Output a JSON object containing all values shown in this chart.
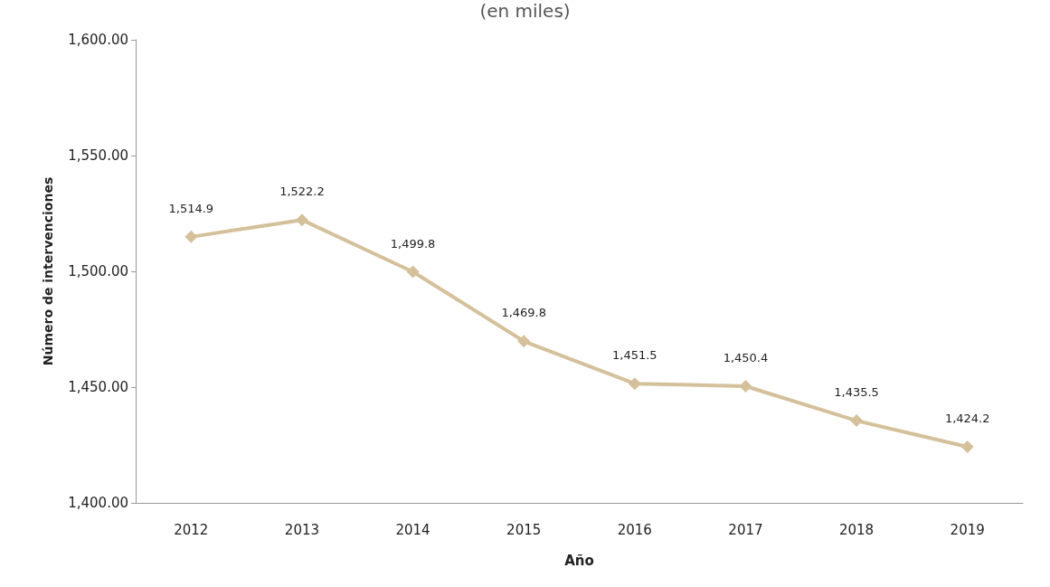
{
  "chart_data": {
    "type": "line",
    "subtitle": "(en miles)",
    "xlabel": "Año",
    "ylabel": "Número de intervenciones",
    "categories": [
      "2012",
      "2013",
      "2014",
      "2015",
      "2016",
      "2017",
      "2018",
      "2019"
    ],
    "series": [
      {
        "color": "#d4c19b",
        "values": [
          1514.9,
          1522.2,
          1499.8,
          1469.8,
          1451.5,
          1450.4,
          1435.5,
          1424.2
        ],
        "value_labels": [
          "1,514.9",
          "1,522.2",
          "1,499.8",
          "1,469.8",
          "1,451.5",
          "1,450.4",
          "1,435.5",
          "1,424.2"
        ]
      }
    ],
    "ylim": [
      1400,
      1600
    ],
    "yticks": [
      {
        "value": 1400,
        "label": "1,400.00"
      },
      {
        "value": 1450,
        "label": "1,450.00"
      },
      {
        "value": 1500,
        "label": "1,500.00"
      },
      {
        "value": 1550,
        "label": "1,550.00"
      },
      {
        "value": 1600,
        "label": "1,600.00"
      }
    ],
    "grid": false,
    "marker": "diamond",
    "line_style": "solid"
  }
}
